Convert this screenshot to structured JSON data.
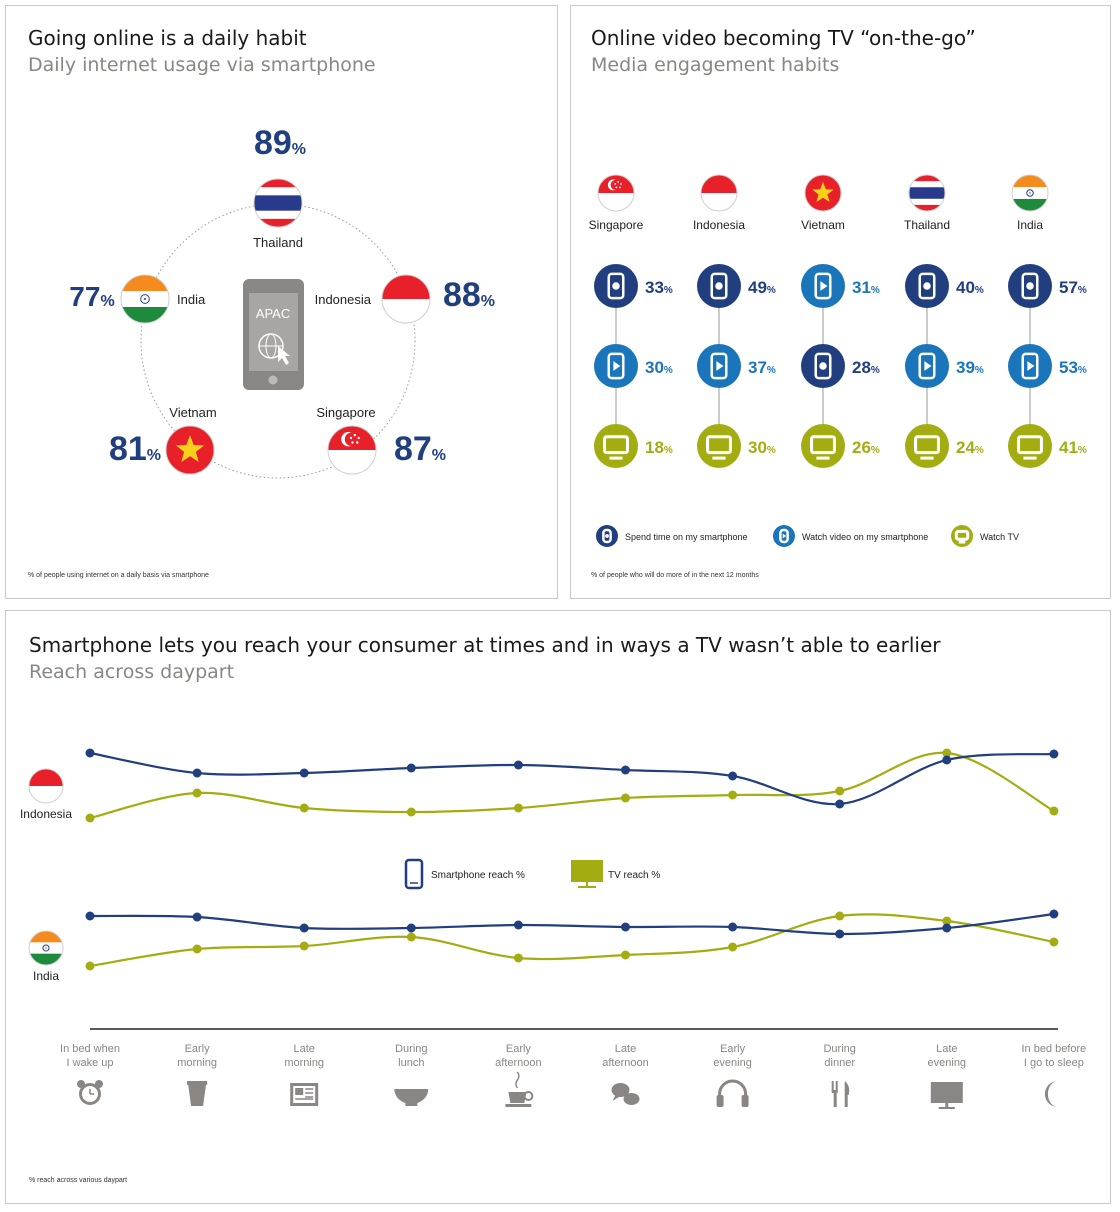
{
  "colors": {
    "navy": "#213f7f",
    "blue": "#1b75bb",
    "olive": "#a3ad12",
    "gray": "#8a8684",
    "red": "#e8202a",
    "orange": "#f58b1f",
    "green": "#1e8a3c"
  },
  "panel1": {
    "title": "Going online is a daily habit",
    "subtitle": "Daily internet usage via smartphone",
    "center_label": "APAC",
    "footnote": "% of people using internet on a daily basis via smartphone",
    "countries": [
      {
        "name": "Thailand",
        "value": "89",
        "unit": "%",
        "flag": "thailand-flag"
      },
      {
        "name": "Indonesia",
        "value": "88",
        "unit": "%",
        "flag": "indonesia-flag"
      },
      {
        "name": "Singapore",
        "value": "87",
        "unit": "%",
        "flag": "singapore-flag"
      },
      {
        "name": "Vietnam",
        "value": "81",
        "unit": "%",
        "flag": "vietnam-flag"
      },
      {
        "name": "India",
        "value": "77",
        "unit": "%",
        "flag": "india-flag"
      }
    ]
  },
  "panel2": {
    "title": "Online video becoming TV “on-the-go”",
    "subtitle": "Media engagement habits",
    "footnote": "% of people who will do more of in the next 12 months",
    "countries": [
      "Singapore",
      "Indonesia",
      "Vietnam",
      "Thailand",
      "India"
    ],
    "legend": [
      {
        "label": "Spend time on my smartphone",
        "icon": "smartphone-icon"
      },
      {
        "label": "Watch video on my smartphone",
        "icon": "video-play-icon"
      },
      {
        "label": "Watch TV",
        "icon": "tv-icon"
      }
    ],
    "unit": "%"
  },
  "panel3": {
    "title": "Smartphone lets you reach your consumer at times and in ways a TV wasn’t able to earlier",
    "subtitle": "Reach across daypart",
    "footnote": "% reach across various daypart",
    "legend": {
      "smartphone": "Smartphone reach %",
      "tv": "TV reach %"
    },
    "countries": [
      "Indonesia",
      "India"
    ],
    "dayparts": [
      {
        "line1": "In bed when",
        "line2": "I wake up",
        "icon": "alarm-clock-icon"
      },
      {
        "line1": "Early",
        "line2": "morning",
        "icon": "coffee-cup-icon"
      },
      {
        "line1": "Late",
        "line2": "morning",
        "icon": "newspaper-icon"
      },
      {
        "line1": "During",
        "line2": "lunch",
        "icon": "bowl-icon"
      },
      {
        "line1": "Early",
        "line2": "afternoon",
        "icon": "tea-cup-icon"
      },
      {
        "line1": "Late",
        "line2": "afternoon",
        "icon": "chat-bubbles-icon"
      },
      {
        "line1": "Early",
        "line2": "evening",
        "icon": "headphones-icon"
      },
      {
        "line1": "During",
        "line2": "dinner",
        "icon": "cutlery-icon"
      },
      {
        "line1": "Late",
        "line2": "evening",
        "icon": "monitor-icon"
      },
      {
        "line1": "In bed before",
        "line2": "I go to sleep",
        "icon": "moon-icon"
      }
    ]
  },
  "chart_data": [
    {
      "type": "bar",
      "title": "Daily internet usage via smartphone",
      "categories": [
        "Thailand",
        "Indonesia",
        "Singapore",
        "Vietnam",
        "India"
      ],
      "values": [
        89,
        88,
        87,
        81,
        77
      ]
    },
    {
      "type": "table",
      "title": "Media engagement habits",
      "categories": [
        "Singapore",
        "Indonesia",
        "Vietnam",
        "Thailand",
        "India"
      ],
      "series": [
        {
          "name": "Spend time on my smartphone",
          "values": [
            33,
            49,
            28,
            40,
            57
          ]
        },
        {
          "name": "Watch video on my smartphone",
          "values": [
            30,
            37,
            31,
            39,
            53
          ]
        },
        {
          "name": "Watch TV",
          "values": [
            18,
            30,
            26,
            24,
            41
          ]
        }
      ],
      "cells": [
        [
          {
            "series": "Spend time on my smartphone",
            "value": 33
          },
          {
            "series": "Watch video on my smartphone",
            "value": 30
          },
          {
            "series": "Watch TV",
            "value": 18
          }
        ],
        [
          {
            "series": "Spend time on my smartphone",
            "value": 49
          },
          {
            "series": "Watch video on my smartphone",
            "value": 37
          },
          {
            "series": "Watch TV",
            "value": 30
          }
        ],
        [
          {
            "series": "Watch video on my smartphone",
            "value": 31
          },
          {
            "series": "Spend time on my smartphone",
            "value": 28
          },
          {
            "series": "Watch TV",
            "value": 26
          }
        ],
        [
          {
            "series": "Spend time on my smartphone",
            "value": 40
          },
          {
            "series": "Watch video on my smartphone",
            "value": 39
          },
          {
            "series": "Watch TV",
            "value": 24
          }
        ],
        [
          {
            "series": "Spend time on my smartphone",
            "value": 57
          },
          {
            "series": "Watch video on my smartphone",
            "value": 53
          },
          {
            "series": "Watch TV",
            "value": 41
          }
        ]
      ]
    },
    {
      "type": "line",
      "title": "Reach across daypart",
      "categories": [
        "In bed when I wake up",
        "Early morning",
        "Late morning",
        "During lunch",
        "Early afternoon",
        "Late afternoon",
        "Early evening",
        "During dinner",
        "Late evening",
        "In bed before I go to sleep"
      ],
      "panels": [
        {
          "name": "Indonesia",
          "series": [
            {
              "name": "Smartphone reach %",
              "values": [
                0.98,
                0.78,
                0.78,
                0.83,
                0.86,
                0.81,
                0.75,
                0.47,
                0.91,
                0.97
              ]
            },
            {
              "name": "TV reach %",
              "values": [
                0.33,
                0.58,
                0.43,
                0.39,
                0.43,
                0.53,
                0.56,
                0.6,
                0.98,
                0.4
              ]
            }
          ]
        },
        {
          "name": "India",
          "series": [
            {
              "name": "Smartphone reach %",
              "values": [
                0.8,
                0.79,
                0.68,
                0.68,
                0.71,
                0.69,
                0.69,
                0.62,
                0.68,
                0.82
              ]
            },
            {
              "name": "TV reach %",
              "values": [
                0.3,
                0.47,
                0.5,
                0.59,
                0.38,
                0.41,
                0.49,
                0.8,
                0.75,
                0.54
              ]
            }
          ]
        }
      ]
    }
  ]
}
